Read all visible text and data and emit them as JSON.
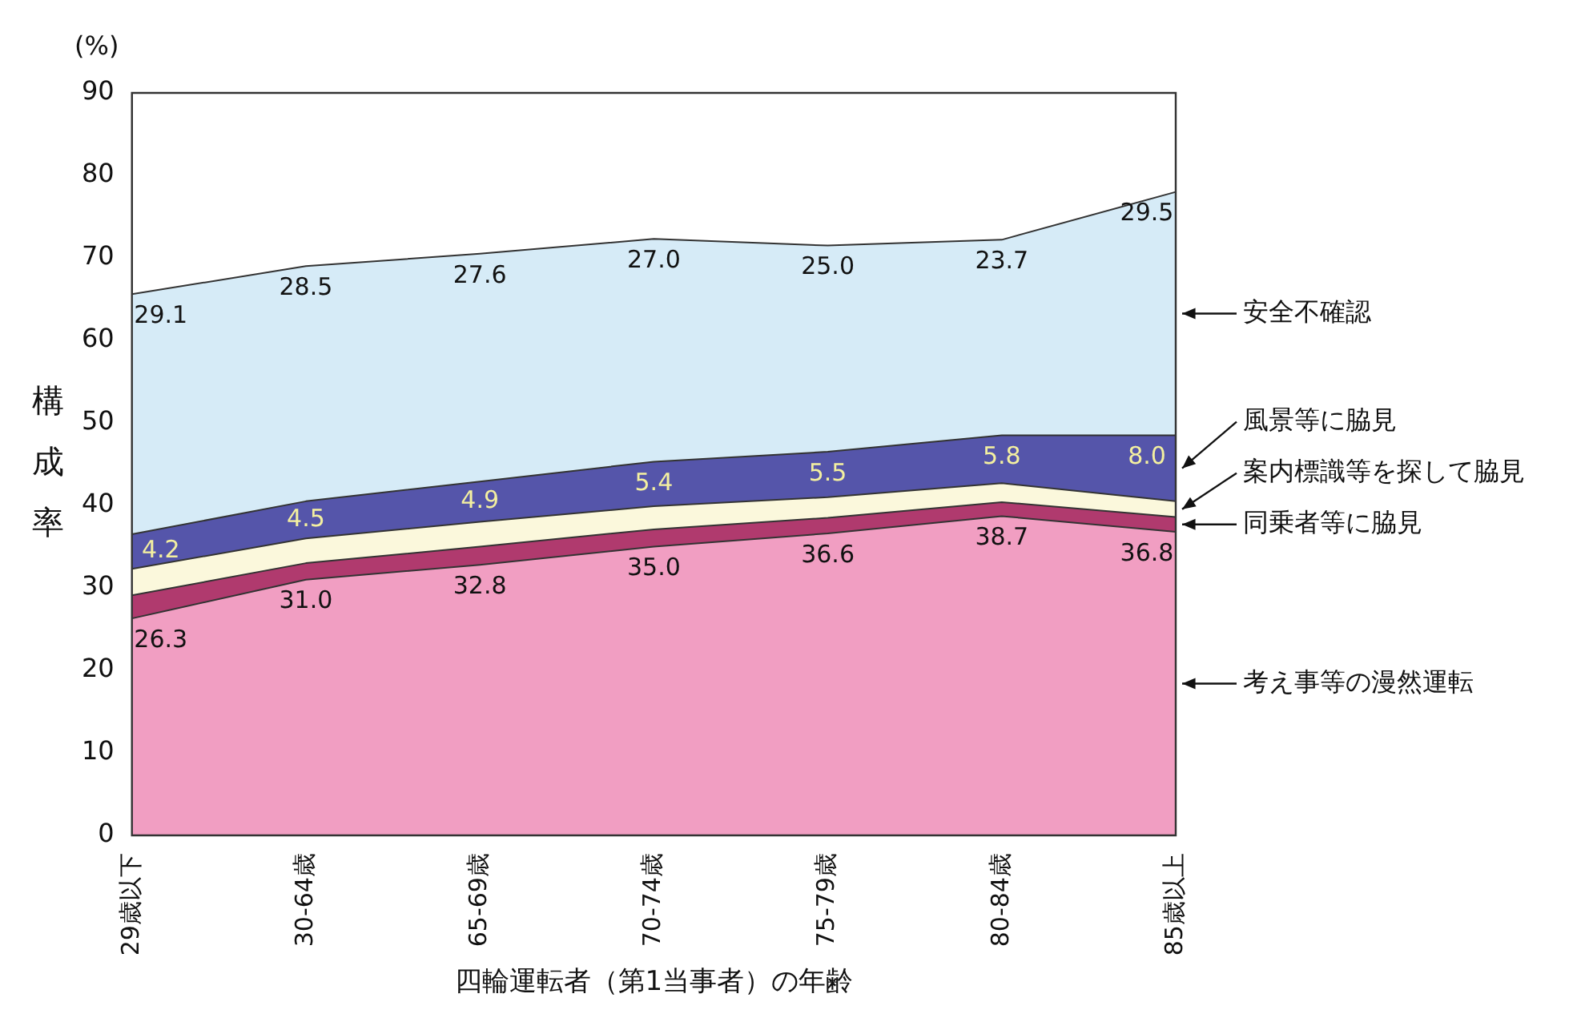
{
  "chart_data": {
    "type": "area",
    "stacked": true,
    "xlabel": "四輪運転者（第1当事者）の年齢",
    "ylabel": "構成率",
    "annotations": [
      "(%)"
    ],
    "categories": [
      "29歳以下",
      "30-64歳",
      "65-69歳",
      "70-74歳",
      "75-79歳",
      "80-84歳",
      "85歳以上"
    ],
    "series": [
      {
        "name": "考え事等の漫然運転",
        "color": "#f19ec2",
        "values": [
          26.3,
          31.0,
          32.8,
          35.0,
          36.6,
          38.7,
          36.8
        ],
        "value_labels": [
          "26.3",
          "31.0",
          "32.8",
          "35.0",
          "36.6",
          "38.7",
          "36.8"
        ]
      },
      {
        "name": "同乗者等に脇見",
        "color": "#b03a6e",
        "values": [
          2.8,
          2.0,
          2.2,
          2.1,
          1.9,
          1.7,
          1.8
        ]
      },
      {
        "name": "案内標識等を探して脇見",
        "color": "#fbf8dc",
        "values": [
          3.2,
          3.0,
          3.0,
          2.8,
          2.5,
          2.3,
          1.9
        ]
      },
      {
        "name": "風景等に脇見",
        "color": "#5555aa",
        "values": [
          4.2,
          4.5,
          4.9,
          5.4,
          5.5,
          5.8,
          8.0
        ],
        "value_labels": [
          "4.2",
          "4.5",
          "4.9",
          "5.4",
          "5.5",
          "5.8",
          "8.0"
        ]
      },
      {
        "name": "安全不確認",
        "color": "#d6ebf7",
        "values": [
          29.1,
          28.5,
          27.6,
          27.0,
          25.0,
          23.7,
          29.5
        ],
        "value_labels": [
          "29.1",
          "28.5",
          "27.6",
          "27.0",
          "25.0",
          "23.7",
          "29.5"
        ]
      }
    ],
    "ylim": [
      0,
      90
    ],
    "yticks": [
      0,
      10,
      20,
      30,
      40,
      50,
      60,
      70,
      80,
      90
    ],
    "grid": false,
    "legend": false
  }
}
